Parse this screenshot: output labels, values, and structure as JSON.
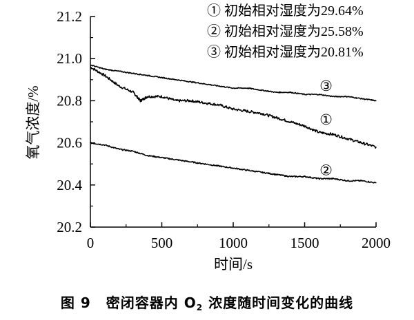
{
  "chart_data": {
    "type": "line",
    "xlabel": "时间/s",
    "ylabel": "氧气浓度/%",
    "xlim": [
      0,
      2000
    ],
    "ylim": [
      20.2,
      21.2
    ],
    "xticks": [
      "0",
      "500",
      "1000",
      "1500",
      "2000"
    ],
    "yticks": [
      "20.2",
      "20.4",
      "20.6",
      "20.8",
      "21.0",
      "21.2"
    ],
    "grid": false,
    "legend_position": "top-right",
    "legend": [
      "① 初始相对湿度为29.64%",
      "② 初始相对湿度为25.58%",
      "③ 初始相对湿度为20.81%"
    ],
    "series": [
      {
        "name": "①",
        "label": "①",
        "x": [
          0,
          100,
          200,
          300,
          350,
          400,
          500,
          600,
          700,
          800,
          900,
          1000,
          1100,
          1200,
          1300,
          1400,
          1500,
          1600,
          1700,
          1800,
          1900,
          2000
        ],
        "y": [
          20.96,
          20.92,
          20.87,
          20.84,
          20.8,
          20.82,
          20.82,
          20.8,
          20.8,
          20.79,
          20.78,
          20.76,
          20.75,
          20.74,
          20.72,
          20.7,
          20.68,
          20.65,
          20.64,
          20.62,
          20.6,
          20.58
        ]
      },
      {
        "name": "②",
        "label": "②",
        "x": [
          0,
          100,
          200,
          300,
          400,
          500,
          600,
          700,
          800,
          900,
          1000,
          1100,
          1200,
          1300,
          1400,
          1500,
          1600,
          1700,
          1800,
          1900,
          2000
        ],
        "y": [
          20.6,
          20.59,
          20.57,
          20.56,
          20.54,
          20.53,
          20.52,
          20.51,
          20.5,
          20.49,
          20.48,
          20.47,
          20.46,
          20.45,
          20.44,
          20.44,
          20.43,
          20.43,
          20.42,
          20.42,
          20.41
        ]
      },
      {
        "name": "③",
        "label": "③",
        "x": [
          0,
          100,
          200,
          300,
          400,
          500,
          600,
          700,
          800,
          900,
          1000,
          1100,
          1200,
          1300,
          1400,
          1500,
          1600,
          1700,
          1800,
          1900,
          2000
        ],
        "y": [
          20.97,
          20.95,
          20.94,
          20.93,
          20.92,
          20.91,
          20.9,
          20.89,
          20.88,
          20.87,
          20.86,
          20.86,
          20.85,
          20.84,
          20.84,
          20.83,
          20.83,
          20.82,
          20.82,
          20.81,
          20.8
        ]
      }
    ],
    "series_label_positions": [
      {
        "label": "①",
        "x": 1650,
        "y": 20.71
      },
      {
        "label": "②",
        "x": 1650,
        "y": 20.47
      },
      {
        "label": "③",
        "x": 1650,
        "y": 20.87
      }
    ],
    "line_color": "#000000"
  },
  "caption": {
    "figure_number": "图 9",
    "text_before_sub": "密闭容器内 O",
    "subscript": "2",
    "text_after_sub": " 浓度随时间变化的曲线"
  }
}
